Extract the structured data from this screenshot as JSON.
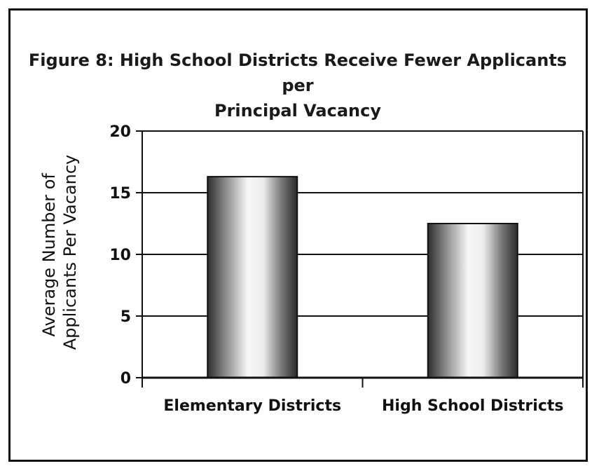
{
  "chart_data": {
    "type": "bar",
    "title": "Figure 8: High School Districts Receive Fewer Applicants per\nPrincipal Vacancy",
    "xlabel": "",
    "ylabel": "Average Number of Applicants Per Vacancy",
    "ylabel_lines": [
      "Average Number of",
      "Applicants Per Vacancy"
    ],
    "categories": [
      "Elementary Districts",
      "High School Districts"
    ],
    "values": [
      16.3,
      12.5
    ],
    "ylim": [
      0,
      20
    ],
    "yticks": [
      "0",
      "5",
      "10",
      "15",
      "20"
    ],
    "grid": true,
    "colors": {
      "bar_dark": "#3a3a3a",
      "bar_light": "#f4f4f4",
      "axis": "#111111"
    }
  }
}
